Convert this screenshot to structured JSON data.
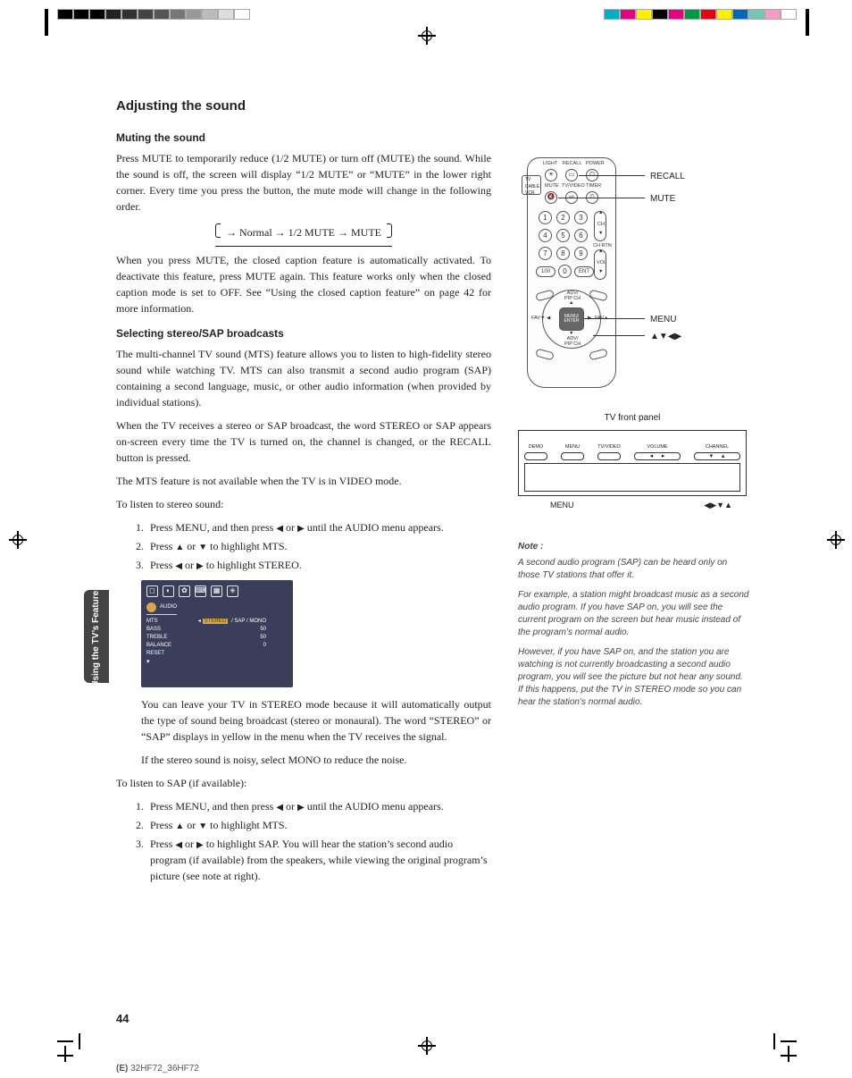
{
  "colorbar_left": [
    "#000",
    "#000",
    "#000",
    "#222",
    "#333",
    "#444",
    "#555",
    "#777",
    "#999",
    "#bbb",
    "#ddd",
    "#fff"
  ],
  "colorbar_right": [
    "#00aec7",
    "#e4007f",
    "#fff100",
    "#000",
    "#e4007f",
    "#009944",
    "#e60012",
    "#fff100",
    "#0068b7",
    "#76c6b3",
    "#f19ec2",
    "#fff"
  ],
  "title": "Adjusting the sound",
  "muting": {
    "heading": "Muting the sound",
    "p1": "Press MUTE to temporarily reduce (1/2 MUTE) or turn off (MUTE) the sound. While the sound is off, the screen will display “1/2 MUTE” or “MUTE” in the lower right corner. Every time you press the button, the mute mode will change in the following order.",
    "flow": {
      "a": "Normal",
      "b": "1/2 MUTE",
      "c": "MUTE"
    },
    "p2": "When you press MUTE, the closed caption feature is automatically activated. To deactivate this feature, press MUTE again. This feature works only when the closed caption mode is set to OFF. See “Using the closed caption feature” on page 42 for more information."
  },
  "sap": {
    "heading": "Selecting stereo/SAP broadcasts",
    "p1": "The multi-channel TV sound (MTS) feature allows you to listen to high-fidelity stereo sound while watching TV. MTS can also transmit a second audio program (SAP) containing a second language, music, or other audio information (when provided by individual stations).",
    "p2": "When the TV receives a stereo or SAP broadcast, the word STEREO or SAP appears on-screen every time the TV is turned on, the channel is changed, or the RECALL button is pressed.",
    "p3": "The MTS feature is not available when the TV is in VIDEO mode.",
    "lead1": "To listen to stereo sound:",
    "steps1": {
      "s1a": "Press MENU, and then press ",
      "s1b": " or ",
      "s1c": " until the AUDIO menu appears.",
      "s2a": "Press ",
      "s2b": " or ",
      "s2c": " to highlight MTS.",
      "s3a": "Press ",
      "s3b": " or ",
      "s3c": " to highlight STEREO."
    },
    "after1": "You can leave your TV in STEREO mode because it will automatically output the type of sound being broadcast (stereo or monaural). The word “STEREO” or “SAP” displays in yellow in the menu when the TV receives the signal.",
    "after2": "If the stereo sound is noisy, select MONO to reduce the noise.",
    "lead2": "To listen to SAP (if available):",
    "steps2": {
      "s1a": "Press MENU, and then press ",
      "s1b": " or ",
      "s1c": " until the AUDIO menu appears.",
      "s2a": "Press ",
      "s2b": " or ",
      "s2c": " to highlight MTS.",
      "s3a": "Press ",
      "s3b": " or ",
      "s3c": " to highlight SAP. You will hear the station’s second audio program (if available) from the speakers, while viewing the original program’s picture (see note at right)."
    }
  },
  "osd": {
    "title": "AUDIO",
    "rows": [
      {
        "l": "MTS",
        "r": "STEREO",
        "extra": "/ SAP / MONO",
        "hl": true
      },
      {
        "l": "BASS",
        "r": "50"
      },
      {
        "l": "TREBLE",
        "r": "50"
      },
      {
        "l": "BALANCE",
        "r": "0"
      },
      {
        "l": "RESET",
        "r": ""
      }
    ]
  },
  "remote": {
    "top_labels": [
      "LIGHT",
      "RECALL",
      "POWER"
    ],
    "row2_labels": [
      "MUTE",
      "TV/VIDEO",
      "TIMER"
    ],
    "switch": [
      "TV",
      "CABLE",
      "VCR"
    ],
    "numbers": [
      "1",
      "2",
      "3",
      "4",
      "5",
      "6",
      "7",
      "8",
      "9",
      "100",
      "0",
      "ENT"
    ],
    "ch_label": "CH",
    "vol_label": "VOL",
    "chret_label": "CH RTN",
    "adv_top": "ADV/\nPIP CH",
    "adv_bot": "ADV/\nPIP CH",
    "fav_l": "FAV▼",
    "fav_r": "FAV▲",
    "center": "MENU/\nENTER",
    "callouts": {
      "recall": "RECALL",
      "mute": "MUTE",
      "menu": "MENU",
      "arrows": "▲▼◀▶"
    }
  },
  "front_panel": {
    "title": "TV front panel",
    "labels": [
      "DEMO",
      "MENU",
      "TV/VIDEO",
      "VOLUME",
      "CHANNEL"
    ],
    "bottom": {
      "menu": "MENU",
      "arrows": "◀▶▼▲"
    }
  },
  "note": {
    "heading": "Note :",
    "p1": "A second audio program (SAP) can be heard only on those TV stations that offer it.",
    "p2": "For example, a station might broadcast music as a second audio program. If you have SAP on, you will see the current program on the screen but hear music instead of the program’s normal audio.",
    "p3": "However, if you have SAP on, and the station you are watching is not currently broadcasting a second audio program, you will see the picture but not hear any sound. If this happens, put the TV in STEREO mode so you can hear the station’s normal audio."
  },
  "side_tab": "Using the TV’s\nFeatures",
  "page_number": "44",
  "footer": "(E) 32HF72_36HF72",
  "glyphs": {
    "left": "◀",
    "right": "▶",
    "up": "▲",
    "down": "▼",
    "rarr": "→"
  }
}
